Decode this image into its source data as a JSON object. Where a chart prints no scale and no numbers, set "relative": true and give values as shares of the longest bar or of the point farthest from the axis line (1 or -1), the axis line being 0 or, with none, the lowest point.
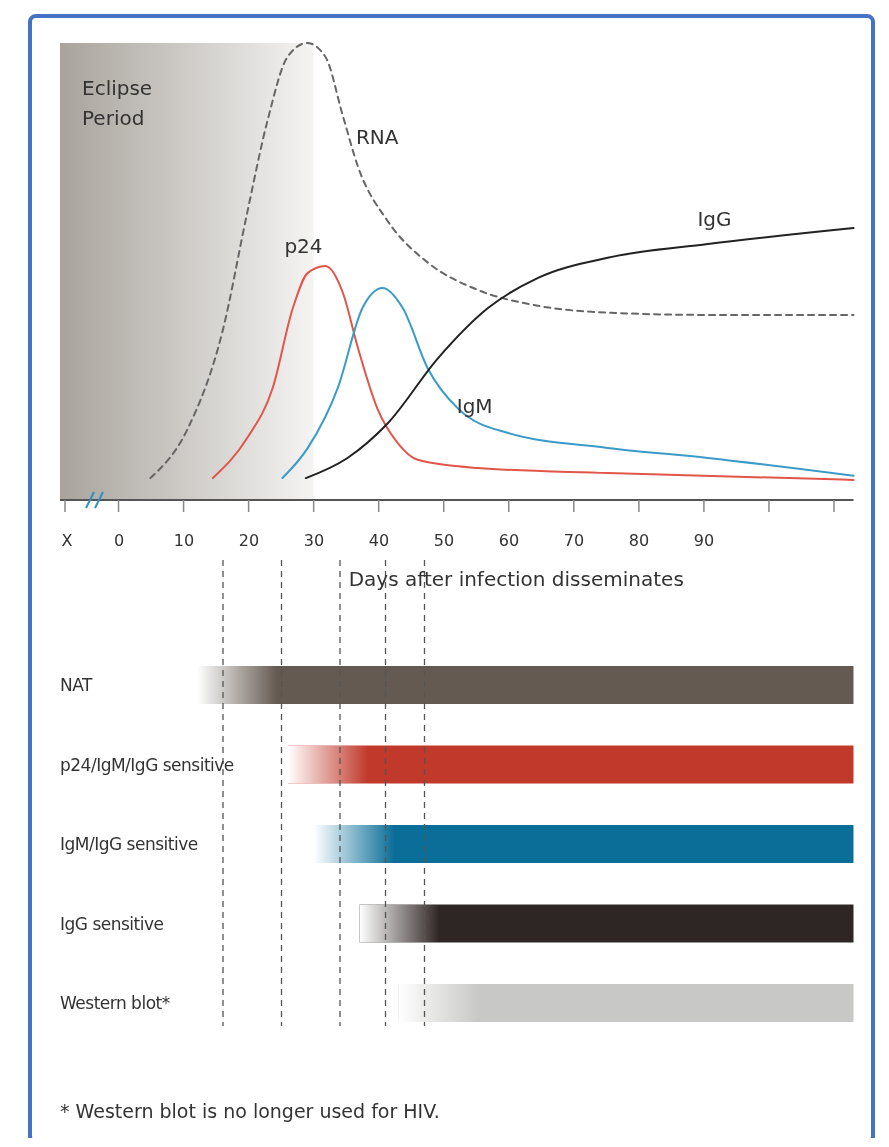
{
  "chart_data": [
    {
      "type": "line",
      "relative": true,
      "tick_labels": false,
      "xlim": [
        -9,
        113
      ],
      "xticks": [
        0,
        10,
        20,
        30,
        40,
        50,
        60,
        70,
        80,
        90,
        {
          "value": 100,
          "label": null
        },
        {
          "value": 110,
          "label": null
        }
      ],
      "bands": [
        {
          "axis": "x",
          "from": -9,
          "to": 30,
          "label": "Eclipse Period",
          "color": "#a8a39c"
        }
      ],
      "series": [
        {
          "name": "RNA",
          "color": "#666666",
          "line_style": "dashed",
          "x": [
            4.9,
            10.6,
            16,
            19.8,
            22.9,
            26,
            29,
            31.8,
            34.5,
            36.8,
            41.4,
            47.5,
            55.2,
            64.5,
            75.2,
            90.6,
            113
          ],
          "values": [
            0.048,
            0.155,
            0.37,
            0.63,
            0.83,
            0.97,
            1,
            0.97,
            0.84,
            0.73,
            0.61,
            0.52,
            0.46,
            0.425,
            0.41,
            0.405,
            0.405
          ]
        },
        {
          "name": "p24",
          "color": "#e0564a",
          "line_style": "solid",
          "x": [
            14.5,
            19.8,
            23.7,
            26.8,
            29.1,
            31.8,
            34.5,
            36.8,
            39.8,
            42.9,
            46,
            55.2,
            75.2,
            113
          ],
          "values": [
            0.048,
            0.136,
            0.245,
            0.42,
            0.497,
            0.512,
            0.453,
            0.333,
            0.2,
            0.125,
            0.088,
            0.07,
            0.059,
            0.044
          ]
        },
        {
          "name": "IgM",
          "color": "#3a9bc9",
          "line_style": "solid",
          "x": [
            25.2,
            29.1,
            33.7,
            37.5,
            40.6,
            43.7,
            47.5,
            52.2,
            59.8,
            75.2,
            90.6,
            113
          ],
          "values": [
            0.048,
            0.114,
            0.245,
            0.42,
            0.464,
            0.42,
            0.289,
            0.2,
            0.147,
            0.114,
            0.092,
            0.053
          ]
        },
        {
          "name": "IgG",
          "color": "#222222",
          "line_style": "solid",
          "x": [
            28.8,
            35.2,
            41.4,
            49.1,
            56.8,
            64.5,
            75.2,
            90.6,
            113
          ],
          "values": [
            0.048,
            0.092,
            0.168,
            0.31,
            0.42,
            0.486,
            0.53,
            0.56,
            0.595
          ]
        }
      ]
    },
    {
      "type": "bar",
      "orientation": "horizontal",
      "categories": [
        "NAT",
        "p24/IgM/IgG sensitive",
        "IgM/IgG sensitive",
        "IgG sensitive",
        "Western blot*"
      ],
      "base": [
        12,
        26,
        30,
        37,
        43
      ],
      "values": [
        101,
        87,
        83,
        76,
        70
      ],
      "colors": [
        "#645a52",
        "#c0392b",
        "#0b6e99",
        "#2e2624",
        "#c8c8c6"
      ],
      "xlabel": "Days after infection disseminates",
      "xlim": [
        -8,
        113
      ],
      "xticks": [
        {
          "value": -8,
          "label": "X"
        },
        0,
        10,
        20,
        30,
        40,
        50,
        60,
        70,
        80,
        90
      ],
      "ref_lines": [
        {
          "axis": "x",
          "value": 16,
          "line_style": "dashed"
        },
        {
          "axis": "x",
          "value": 25,
          "line_style": "dashed"
        },
        {
          "axis": "x",
          "value": 34,
          "line_style": "dashed"
        },
        {
          "axis": "x",
          "value": 41,
          "line_style": "dashed"
        },
        {
          "axis": "x",
          "value": 47,
          "line_style": "dashed"
        }
      ],
      "annotations": [
        "* Western blot is no longer used for HIV."
      ]
    }
  ]
}
